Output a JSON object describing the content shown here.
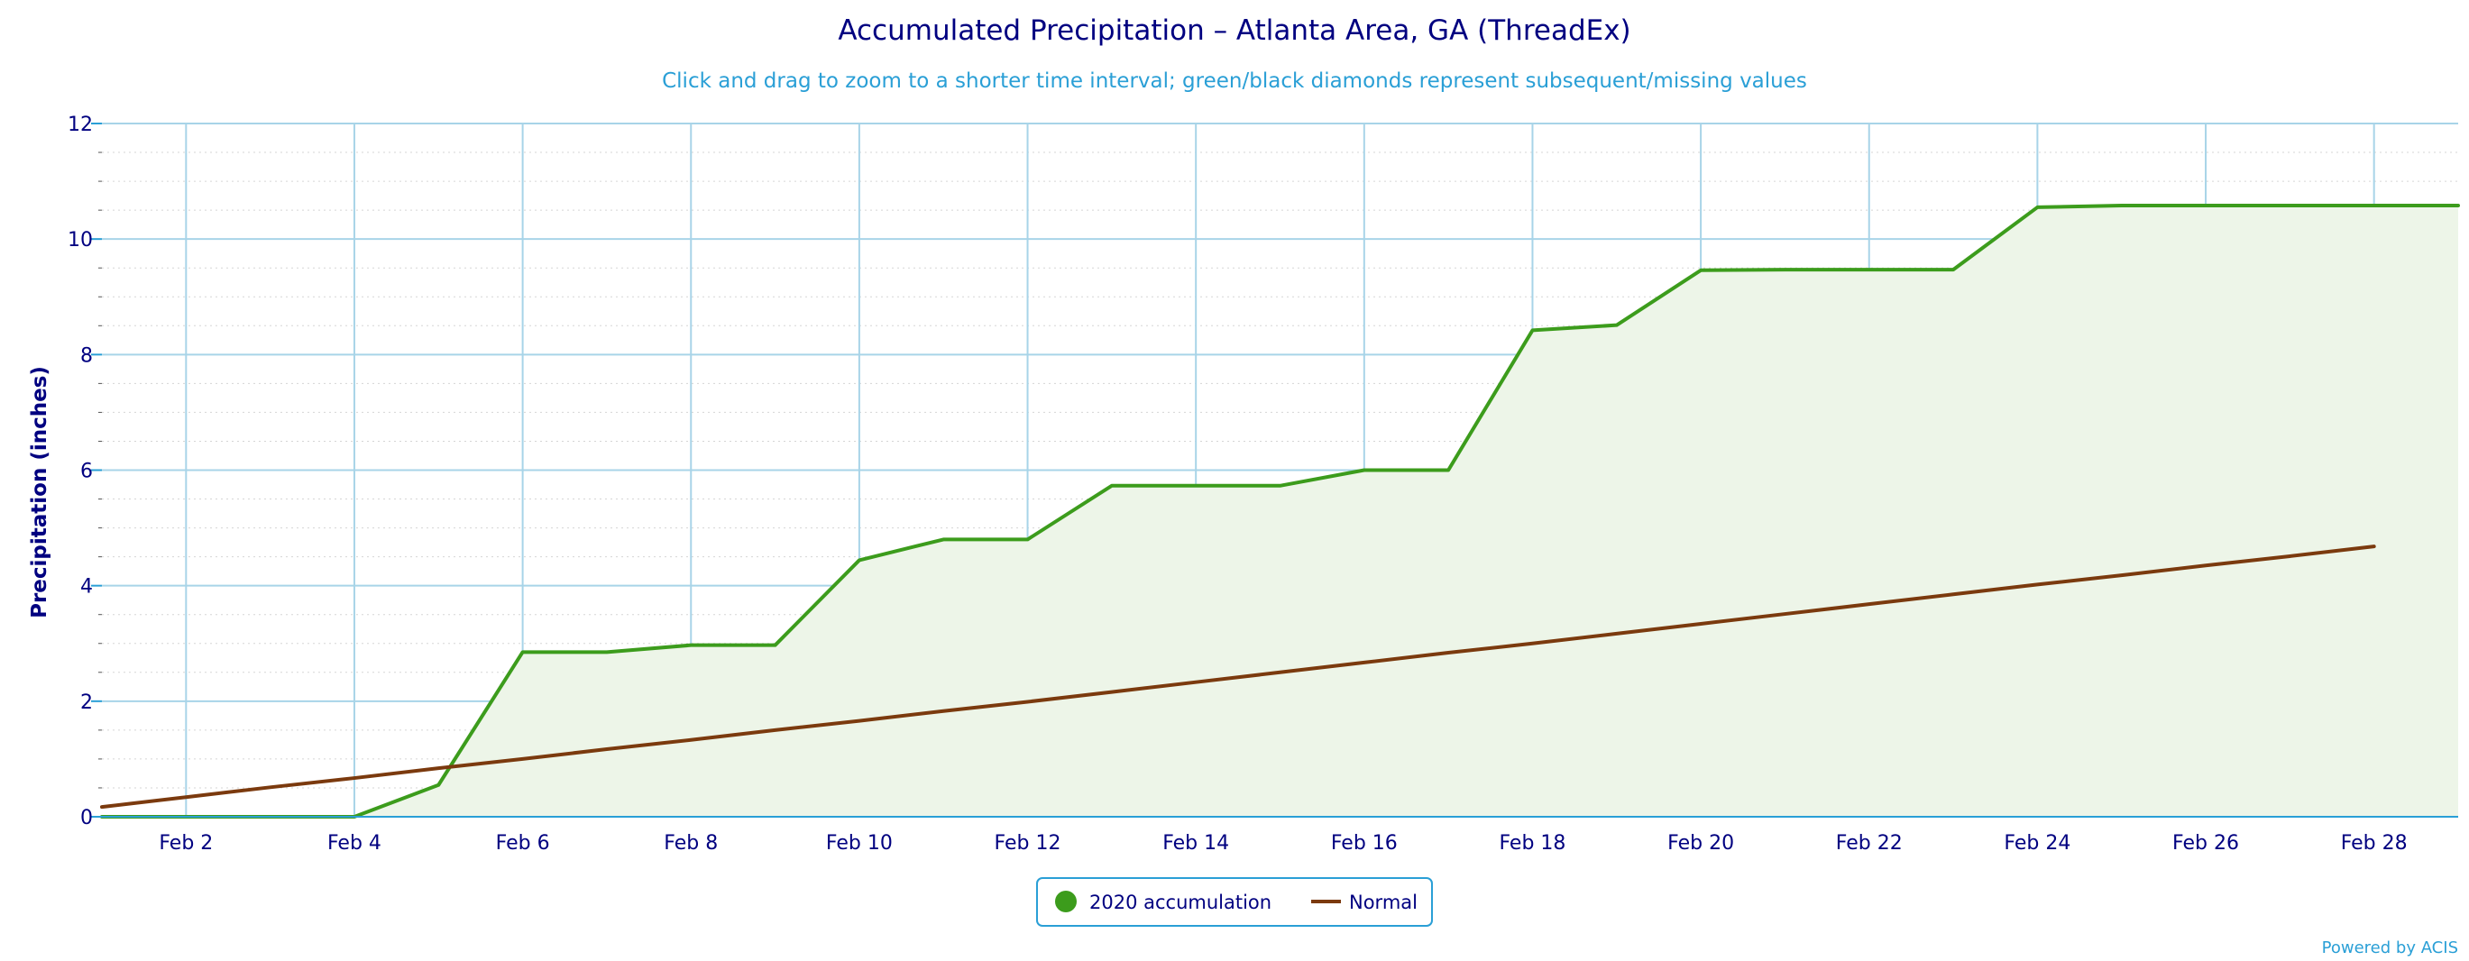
{
  "chart_data": {
    "type": "line",
    "title": "Accumulated Precipitation – Atlanta Area, GA (ThreadEx)",
    "subtitle": "Click and drag to zoom to a shorter time interval; green/black diamonds represent subsequent/missing values",
    "ylabel": "Precipitation (inches)",
    "xlabel": "",
    "ylim": [
      0,
      12
    ],
    "xlim": [
      1,
      29
    ],
    "y_ticks": [
      0,
      2,
      4,
      6,
      8,
      10,
      12
    ],
    "y_tick_labels": [
      "0",
      "2",
      "4",
      "6",
      "8",
      "10",
      "12"
    ],
    "x_ticks": [
      2,
      4,
      6,
      8,
      10,
      12,
      14,
      16,
      18,
      20,
      22,
      24,
      26,
      28
    ],
    "x_tick_labels": [
      "Feb 2",
      "Feb 4",
      "Feb 6",
      "Feb 8",
      "Feb 10",
      "Feb 12",
      "Feb 14",
      "Feb 16",
      "Feb 18",
      "Feb 20",
      "Feb 22",
      "Feb 24",
      "Feb 26",
      "Feb 28"
    ],
    "grid": true,
    "legend_position": "bottom-center",
    "series": [
      {
        "name": "2020 accumulation",
        "style": "area",
        "color": "#3c9c1c",
        "fill_color": "#edf5e8",
        "x": [
          1,
          2,
          3,
          4,
          5,
          6,
          7,
          8,
          9,
          10,
          11,
          12,
          13,
          14,
          15,
          16,
          17,
          18,
          19,
          20,
          21,
          22,
          23,
          24,
          25,
          26,
          27,
          28,
          29
        ],
        "values": [
          0,
          0,
          0,
          0,
          0.55,
          2.85,
          2.85,
          2.97,
          2.97,
          4.44,
          4.8,
          4.8,
          5.73,
          5.73,
          5.73,
          6.0,
          6.0,
          8.42,
          8.51,
          9.46,
          9.47,
          9.47,
          9.47,
          10.55,
          10.58,
          10.58,
          10.58,
          10.58,
          10.58
        ]
      },
      {
        "name": "Normal",
        "style": "line",
        "color": "#7b3a0e",
        "x": [
          1,
          2,
          3,
          4,
          5,
          6,
          7,
          8,
          9,
          10,
          11,
          12,
          13,
          14,
          15,
          16,
          17,
          18,
          19,
          20,
          21,
          22,
          23,
          24,
          25,
          26,
          27,
          28
        ],
        "values": [
          0.17,
          0.34,
          0.51,
          0.67,
          0.84,
          1.0,
          1.17,
          1.33,
          1.5,
          1.66,
          1.83,
          1.99,
          2.16,
          2.33,
          2.5,
          2.67,
          2.84,
          3.0,
          3.17,
          3.34,
          3.51,
          3.68,
          3.85,
          4.02,
          4.18,
          4.35,
          4.51,
          4.68
        ]
      }
    ]
  },
  "credits": "Powered by ACIS"
}
